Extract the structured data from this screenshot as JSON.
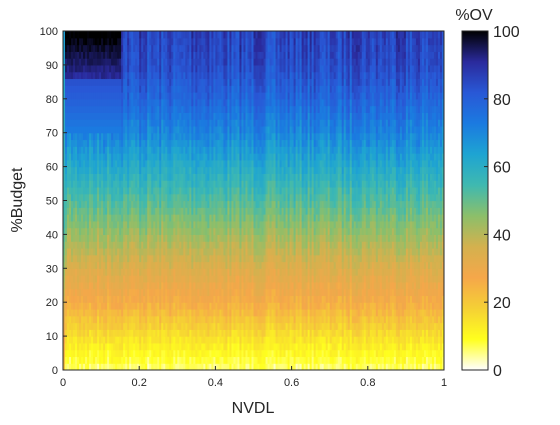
{
  "chart_data": {
    "type": "heatmap",
    "xlabel": "NVDL",
    "ylabel": "%Budget",
    "colorbar_label": "%OV",
    "xlim": [
      0,
      1
    ],
    "ylim": [
      0,
      100
    ],
    "x_ticks": [
      0,
      0.2,
      0.4,
      0.6,
      0.8,
      1
    ],
    "x_tick_labels": [
      "0",
      "0.2",
      "0.4",
      "0.6",
      "0.8",
      "1"
    ],
    "y_ticks": [
      0,
      10,
      20,
      30,
      40,
      50,
      60,
      70,
      80,
      90,
      100
    ],
    "y_tick_labels": [
      "0",
      "10",
      "20",
      "30",
      "40",
      "50",
      "60",
      "70",
      "80",
      "90",
      "100"
    ],
    "colorbar_range": [
      0,
      100
    ],
    "colorbar_ticks": [
      0,
      20,
      40,
      60,
      80,
      100
    ],
    "colorbar_tick_labels": [
      "0",
      "20",
      "40",
      "60",
      "80",
      "100"
    ],
    "colormap": [
      "#ffffff",
      "#ffff1e",
      "#f5d035",
      "#f5a74a",
      "#d4b14e",
      "#8cbf6a",
      "#3fb9b0",
      "#1ea4d2",
      "#1b7ae0",
      "#2958d6",
      "#2a2a9c",
      "#000000"
    ],
    "description_of_values": "%OV increases roughly linearly with %Budget (approx. %OV ≈ %Budget) and is nearly independent of NVDL; near NVDL=0 and high budget values saturate toward 100",
    "profile_by_budget": {
      "budget": [
        0,
        10,
        20,
        30,
        40,
        50,
        60,
        70,
        80,
        90,
        100
      ],
      "ov": [
        5,
        15,
        26,
        34,
        43,
        52,
        61,
        70,
        78,
        84,
        86
      ]
    },
    "grid": false,
    "colorbar_position": "right"
  }
}
